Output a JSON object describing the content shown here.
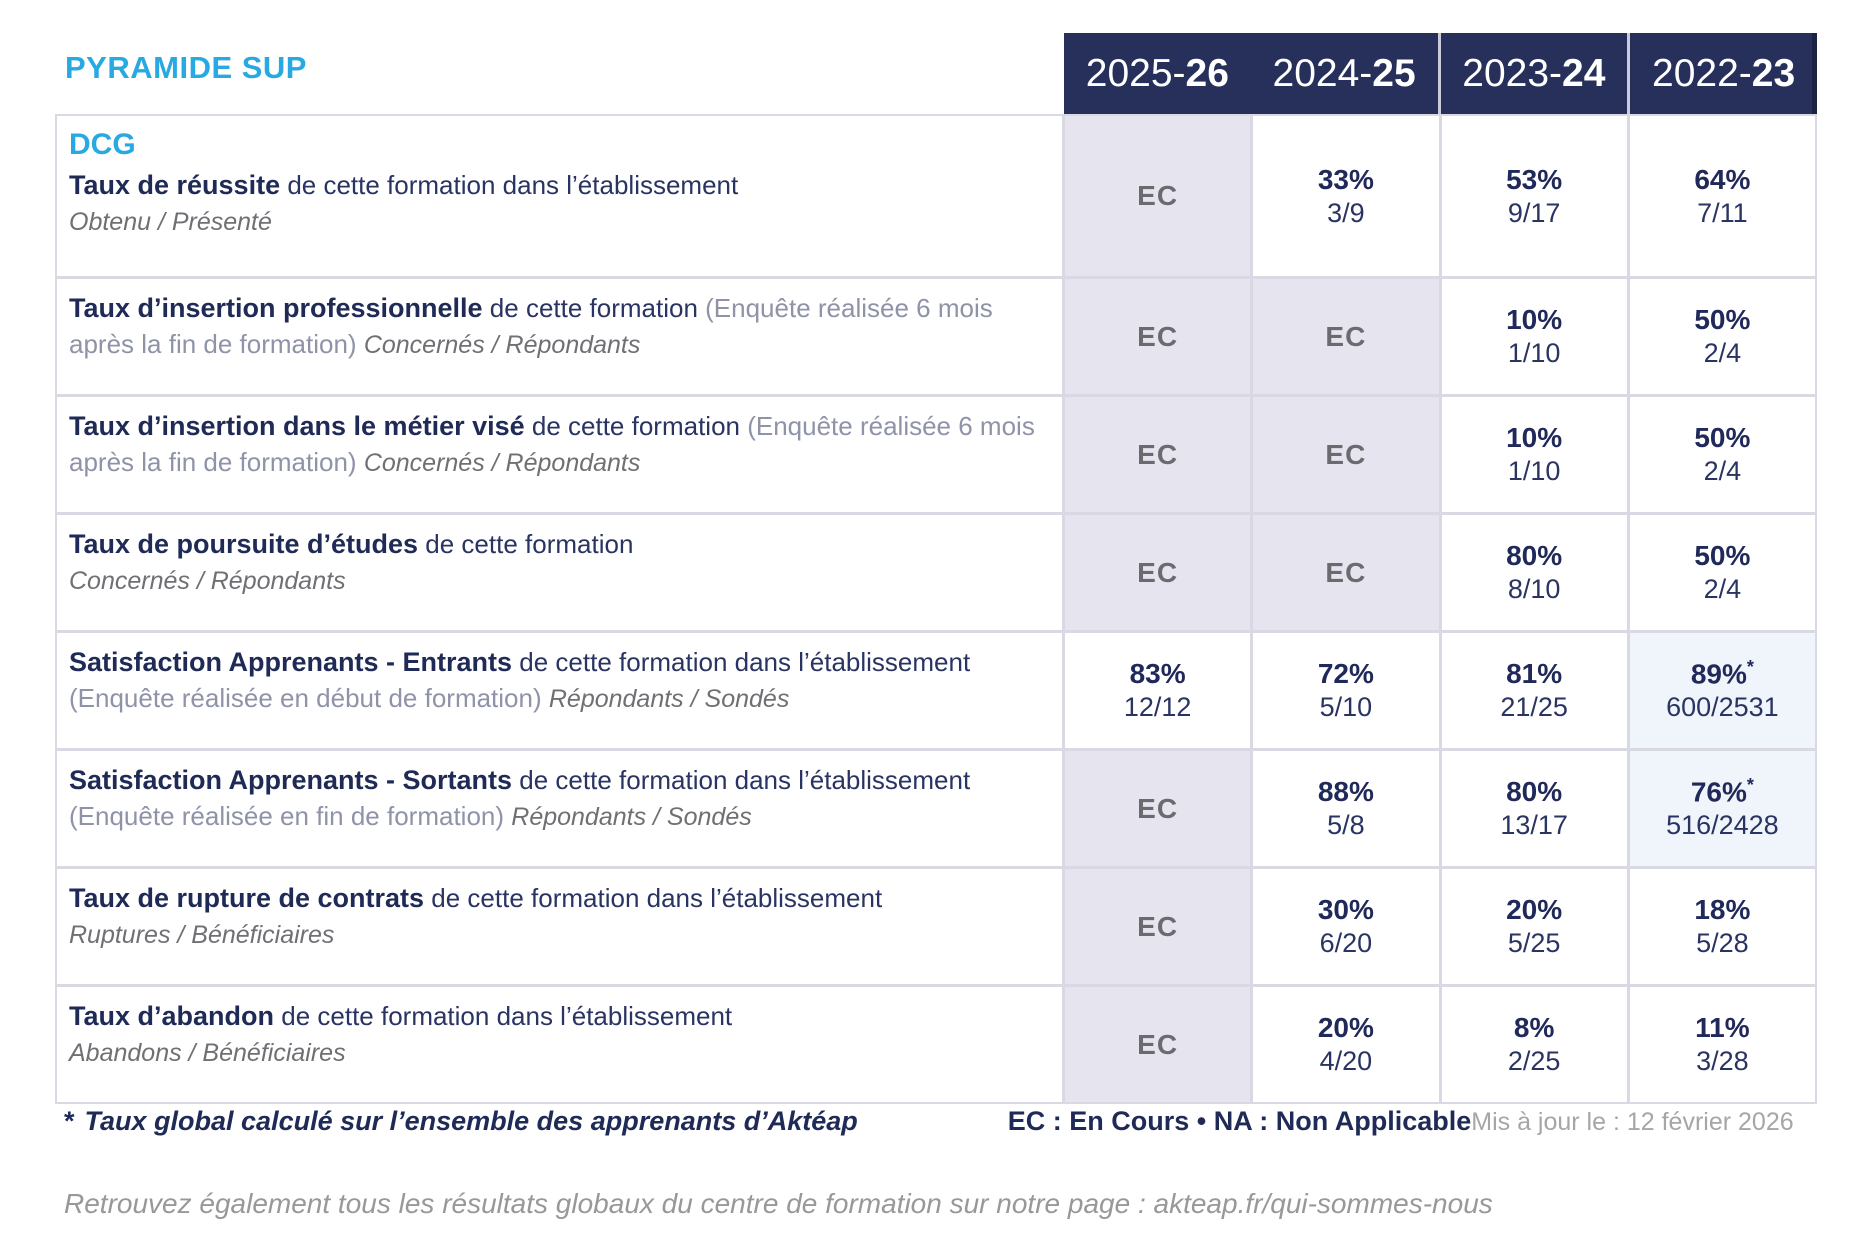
{
  "brand": "PYRAMIDE SUP",
  "program": "DCG",
  "columns": [
    {
      "prefix": "2025-",
      "suffix": "26"
    },
    {
      "prefix": "2024-",
      "suffix": "25"
    },
    {
      "prefix": "2023-",
      "suffix": "24"
    },
    {
      "prefix": "2022-",
      "suffix": "23"
    }
  ],
  "rows": [
    {
      "title": "Taux de réussite",
      "desc": " de cette formation dans l’établissement",
      "paren": "",
      "sub": "Obtenu / Présenté",
      "cells": [
        {
          "type": "ec",
          "text": "EC"
        },
        {
          "type": "value",
          "pct": "33%",
          "frac": "3/9"
        },
        {
          "type": "value",
          "pct": "53%",
          "frac": "9/17"
        },
        {
          "type": "value",
          "pct": "64%",
          "frac": "7/11"
        }
      ]
    },
    {
      "title": "Taux d’insertion professionnelle",
      "desc": " de cette formation ",
      "paren": "(Enquête réalisée 6 mois après la fin de formation) ",
      "sub": "Concernés / Répondants",
      "cells": [
        {
          "type": "ec",
          "text": "EC"
        },
        {
          "type": "ec",
          "text": "EC"
        },
        {
          "type": "value",
          "pct": "10%",
          "frac": "1/10"
        },
        {
          "type": "value",
          "pct": "50%",
          "frac": "2/4"
        }
      ]
    },
    {
      "title": "Taux d’insertion dans le métier visé",
      "desc": " de cette formation ",
      "paren": "(Enquête réalisée 6 mois après la fin de formation) ",
      "sub": "Concernés / Répondants",
      "cells": [
        {
          "type": "ec",
          "text": "EC"
        },
        {
          "type": "ec",
          "text": "EC"
        },
        {
          "type": "value",
          "pct": "10%",
          "frac": "1/10"
        },
        {
          "type": "value",
          "pct": "50%",
          "frac": "2/4"
        }
      ]
    },
    {
      "title": "Taux de poursuite d’études",
      "desc": " de cette formation",
      "paren": "",
      "sub": "Concernés / Répondants",
      "cells": [
        {
          "type": "ec",
          "text": "EC"
        },
        {
          "type": "ec",
          "text": "EC"
        },
        {
          "type": "value",
          "pct": "80%",
          "frac": "8/10"
        },
        {
          "type": "value",
          "pct": "50%",
          "frac": "2/4"
        }
      ]
    },
    {
      "title": "Satisfaction Apprenants - Entrants",
      "desc": " de cette formation dans l’établissement ",
      "paren": "(Enquête réalisée en début de formation) ",
      "sub": "Répondants / Sondés",
      "cells": [
        {
          "type": "value",
          "pct": "83%",
          "frac": "12/12"
        },
        {
          "type": "value",
          "pct": "72%",
          "frac": "5/10"
        },
        {
          "type": "value",
          "pct": "81%",
          "frac": "21/25"
        },
        {
          "type": "value",
          "pct": "89%",
          "star": "*",
          "frac": "600/2531",
          "highlight": true
        }
      ]
    },
    {
      "title": "Satisfaction Apprenants - Sortants",
      "desc": " de cette formation dans l’établissement ",
      "paren": "(Enquête réalisée en fin de formation) ",
      "sub": "Répondants / Sondés",
      "cells": [
        {
          "type": "ec",
          "text": "EC"
        },
        {
          "type": "value",
          "pct": "88%",
          "frac": "5/8"
        },
        {
          "type": "value",
          "pct": "80%",
          "frac": "13/17"
        },
        {
          "type": "value",
          "pct": "76%",
          "star": "*",
          "frac": "516/2428",
          "highlight": true
        }
      ]
    },
    {
      "title": "Taux de rupture de contrats",
      "desc": " de cette formation dans l’établissement",
      "paren": "",
      "sub": "Ruptures / Bénéficiaires",
      "cells": [
        {
          "type": "ec",
          "text": "EC"
        },
        {
          "type": "value",
          "pct": "30%",
          "frac": "6/20"
        },
        {
          "type": "value",
          "pct": "20%",
          "frac": "5/25"
        },
        {
          "type": "value",
          "pct": "18%",
          "frac": "5/28"
        }
      ]
    },
    {
      "title": "Taux d’abandon",
      "desc": " de cette formation dans l’établissement",
      "paren": "",
      "sub": "Abandons / Bénéficiaires",
      "cells": [
        {
          "type": "ec",
          "text": "EC"
        },
        {
          "type": "value",
          "pct": "20%",
          "frac": "4/20"
        },
        {
          "type": "value",
          "pct": "8%",
          "frac": "2/25"
        },
        {
          "type": "value",
          "pct": "11%",
          "frac": "3/28"
        }
      ]
    }
  ],
  "footnote": {
    "asterisk": "*",
    "text": "Taux global calculé sur l’ensemble des apprenants d’Aktéap"
  },
  "legend": "EC : En Cours  •  NA : Non Applicable",
  "updated": "Mis à jour le : 12 février 2026",
  "bottom_note": "Retrouvez également tous les résultats globaux du centre de formation sur notre page : akteap.fr/qui-sommes-nous",
  "colors": {
    "accent_cyan": "#29A9E1",
    "navy": "#20295A",
    "header_bg": "#272F5B",
    "ec_bg": "#E6E5EF",
    "highlight_bg": "#EFF5FA"
  }
}
